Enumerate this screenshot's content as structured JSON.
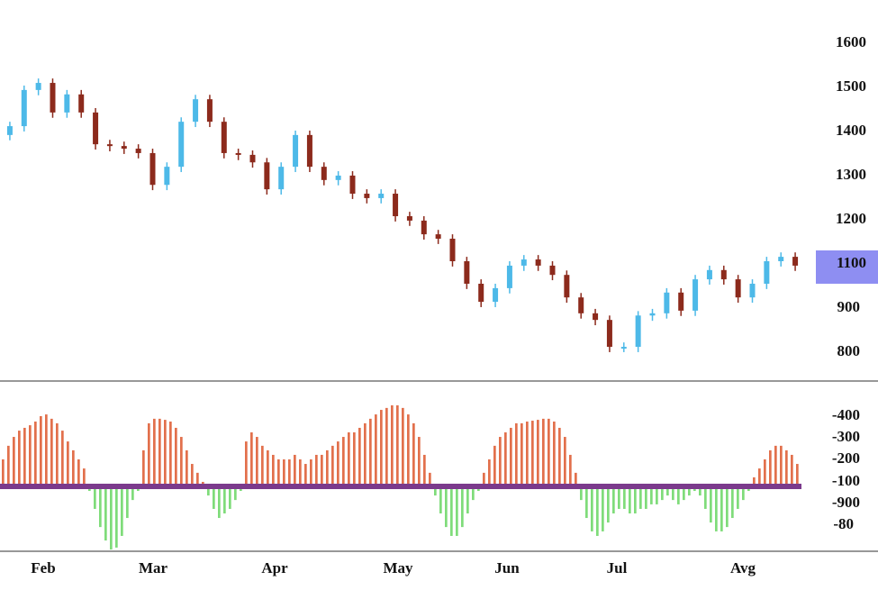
{
  "chart_data": [
    {
      "type": "candlestick",
      "price_ticks": [
        "1600",
        "1500",
        "1400",
        "1300",
        "1200",
        "1100",
        "900",
        "800"
      ],
      "highlighted_tick": "1100",
      "highlight_color": "#8e8ef2",
      "up_color": "#4db9e8",
      "down_color": "#8c2a1c",
      "ylim": [
        900,
        1600
      ],
      "closes": [
        1406,
        1488,
        1504,
        1437,
        1478,
        1437,
        1365,
        1361,
        1355,
        1345,
        1273,
        1314,
        1416,
        1467,
        1416,
        1345,
        1341,
        1324,
        1263,
        1314,
        1386,
        1314,
        1284,
        1294,
        1253,
        1243,
        1253,
        1202,
        1192,
        1161,
        1151,
        1100,
        1049,
        1008,
        1039,
        1090,
        1104,
        1090,
        1069,
        1018,
        982,
        967,
        906,
        906,
        977,
        982,
        1029,
        988,
        1059,
        1080,
        1059,
        1018,
        1049,
        1100,
        1110,
        1090
      ]
    },
    {
      "type": "bar",
      "ticks": [
        "-400",
        "-300",
        "-200",
        "-100",
        "-900",
        "-80"
      ],
      "positive_color": "#e2704c",
      "negative_color": "#7fdc7a",
      "baseline_color": "#7b3a8c",
      "values": [
        125,
        188,
        229,
        258,
        271,
        283,
        300,
        325,
        333,
        313,
        292,
        258,
        208,
        167,
        125,
        83,
        -21,
        -104,
        -188,
        -250,
        -292,
        -283,
        -229,
        -146,
        -63,
        -21,
        167,
        292,
        313,
        313,
        308,
        300,
        271,
        229,
        167,
        104,
        63,
        21,
        -42,
        -104,
        -146,
        -125,
        -104,
        -63,
        -21,
        208,
        250,
        229,
        188,
        167,
        146,
        125,
        125,
        125,
        146,
        125,
        104,
        125,
        146,
        146,
        167,
        188,
        208,
        229,
        250,
        250,
        271,
        292,
        313,
        333,
        354,
        363,
        375,
        375,
        363,
        333,
        292,
        229,
        146,
        63,
        -42,
        -125,
        -188,
        -229,
        -229,
        -188,
        -125,
        -63,
        -21,
        63,
        125,
        188,
        229,
        250,
        271,
        292,
        292,
        300,
        304,
        308,
        313,
        313,
        300,
        271,
        229,
        146,
        63,
        -63,
        -146,
        -208,
        -229,
        -208,
        -167,
        -125,
        -104,
        -104,
        -125,
        -125,
        -104,
        -104,
        -83,
        -83,
        -63,
        -42,
        -63,
        -83,
        -63,
        -42,
        -21,
        -42,
        -104,
        -167,
        -208,
        -208,
        -188,
        -146,
        -104,
        -63,
        -21,
        42,
        83,
        125,
        167,
        188,
        188,
        167,
        146,
        104
      ]
    }
  ],
  "x_labels": [
    "Feb",
    "Mar",
    "Apr",
    "May",
    "Jun",
    "Jul",
    "Avg"
  ]
}
